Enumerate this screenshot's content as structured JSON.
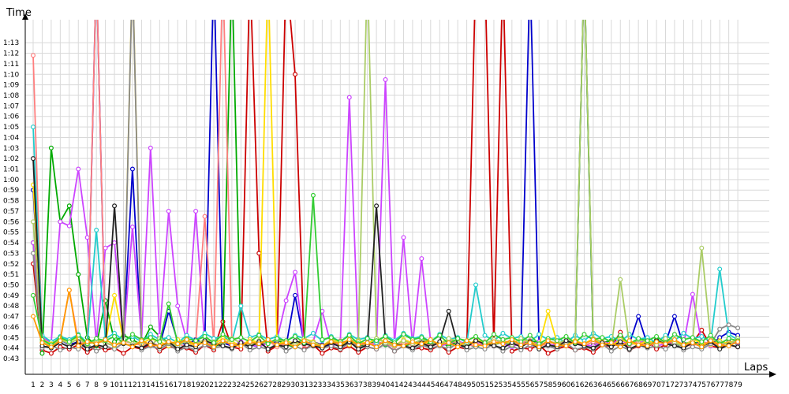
{
  "chart_data": {
    "type": "line",
    "xlabel": "Laps",
    "ylabel": "Time",
    "x": [
      1,
      2,
      3,
      4,
      5,
      6,
      7,
      8,
      9,
      10,
      11,
      12,
      13,
      14,
      15,
      16,
      17,
      18,
      19,
      20,
      21,
      22,
      23,
      24,
      25,
      26,
      27,
      28,
      29,
      30,
      31,
      32,
      33,
      34,
      35,
      36,
      37,
      38,
      39,
      40,
      41,
      42,
      43,
      44,
      45,
      46,
      47,
      48,
      49,
      50,
      51,
      52,
      53,
      54,
      55,
      56,
      57,
      58,
      59,
      60,
      61,
      62,
      63,
      64,
      65,
      66,
      67,
      68,
      69,
      70,
      71,
      72,
      73,
      74,
      75,
      76,
      77,
      78,
      79
    ],
    "x_ticks": [
      "1",
      "2",
      "3",
      "4",
      "5",
      "6",
      "7",
      "8",
      "9",
      "10",
      "11",
      "12",
      "13",
      "14",
      "15",
      "16",
      "17",
      "18",
      "19",
      "20",
      "21",
      "22",
      "23",
      "24",
      "25",
      "26",
      "27",
      "28",
      "29",
      "30",
      "31",
      "32",
      "33",
      "34",
      "35",
      "36",
      "37",
      "38",
      "39",
      "40",
      "41",
      "42",
      "43",
      "44",
      "45",
      "46",
      "47",
      "48",
      "49",
      "50",
      "51",
      "52",
      "53",
      "54",
      "55",
      "56",
      "57",
      "58",
      "59",
      "60",
      "61",
      "62",
      "63",
      "64",
      "65",
      "66",
      "67",
      "68",
      "69",
      "70",
      "71",
      "72",
      "73",
      "74",
      "75",
      "76",
      "77",
      "78",
      "79"
    ],
    "y_ticks": [
      "0:43",
      "0:44",
      "0:45",
      "0:46",
      "0:47",
      "0:48",
      "0:49",
      "0:50",
      "0:51",
      "0:52",
      "0:53",
      "0:54",
      "0:55",
      "0:56",
      "0:57",
      "0:58",
      "0:59",
      "1:00",
      "1:01",
      "1:02",
      "1:03",
      "1:04",
      "1:05",
      "1:06",
      "1:07",
      "1:08",
      "1:09",
      "1:10",
      "1:11",
      "1:12",
      "1:13"
    ],
    "ylim_seconds": [
      42,
      74
    ],
    "grid": true,
    "legend": "none",
    "series": [
      {
        "color": "#0000cc",
        "values": [
          59,
          44.5,
          44.2,
          44.8,
          44.3,
          44.6,
          44.1,
          80,
          44.5,
          44.2,
          44.7,
          61,
          44.3,
          44.5,
          44.2,
          47.5,
          44.6,
          44.3,
          44.8,
          44.4,
          80,
          44.5,
          44.2,
          44.6,
          44.3,
          44.1,
          44.7,
          44.5,
          44.2,
          49,
          44.4,
          44.6,
          44.3,
          44.2,
          44.5,
          44.7,
          44.1,
          44.4,
          44.6,
          44.3,
          44.5,
          44.2,
          44.4,
          44.7,
          44.3,
          44.5,
          44.2,
          44.6,
          44.4,
          44.1,
          44.5,
          44.3,
          44.6,
          44.2,
          44.4,
          80,
          44.5,
          44.3,
          44.2,
          44.6,
          44.4,
          80,
          44.3,
          44.5,
          44.7,
          44.2,
          44.4,
          47,
          44.3,
          44.6,
          44.5,
          47,
          44.2,
          44.4,
          44.6,
          44.3,
          45,
          45.5,
          45.2
        ]
      },
      {
        "color": "#cc0000",
        "values": [
          52,
          43.8,
          43.5,
          44.1,
          43.9,
          44.3,
          43.6,
          44.2,
          43.8,
          44,
          43.5,
          44.1,
          43.9,
          44.4,
          43.7,
          44.2,
          43.9,
          44,
          43.6,
          44.3,
          43.8,
          46.5,
          44.1,
          43.9,
          80,
          53,
          43.7,
          44.2,
          80,
          70,
          43.9,
          44.3,
          43.5,
          44,
          43.8,
          44.2,
          43.6,
          44.1,
          43.9,
          44.4,
          43.7,
          44.2,
          43.9,
          44,
          43.8,
          44.3,
          43.6,
          44.1,
          43.9,
          80,
          80,
          44.2,
          80,
          43.7,
          44,
          43.9,
          44.3,
          43.5,
          43.9,
          44.2,
          43.8,
          44,
          43.6,
          44.3,
          44.1,
          45.5,
          43.8,
          44.2,
          44.6,
          43.9,
          44.3,
          44.6,
          44.1,
          44.5,
          45.7,
          44.2,
          44,
          44.3,
          44.1
        ]
      },
      {
        "color": "#00aa00",
        "values": [
          54,
          43.5,
          63,
          56,
          57.5,
          51,
          45,
          44.2,
          48.5,
          44.6,
          45.2,
          44.8,
          44.3,
          46,
          45.1,
          44.5,
          44.2,
          44.8,
          44.3,
          44.6,
          44.1,
          44.5,
          80,
          44.3,
          44.6,
          44.2,
          44.5,
          44.8,
          44.3,
          44.1,
          44.6,
          44.4,
          44.2,
          44.5,
          44.3,
          44.7,
          44.1,
          44.4,
          44.6,
          44.3,
          44.5,
          44.2,
          44.4,
          44.8,
          44.3,
          44.5,
          44.2,
          44.6,
          44.4,
          44.1,
          44.5,
          44.3,
          44.6,
          44.2,
          44.4,
          44.7,
          44.5,
          44.3,
          44.2,
          44.6,
          44.4,
          80,
          44.3,
          44.5,
          44.7,
          44.2,
          44.4,
          44.6,
          44.3,
          44.8,
          44.5,
          44.2,
          44.4,
          44.6,
          44.3,
          44.5,
          44.2,
          44.6,
          44.4
        ]
      },
      {
        "color": "#cc44ff",
        "values": [
          54,
          45,
          44.5,
          56,
          55.6,
          61,
          54.5,
          44.6,
          53.5,
          54,
          44.5,
          55.5,
          44.8,
          63,
          45.2,
          57,
          48,
          44.7,
          57,
          44.3,
          44.5,
          44.8,
          44.2,
          44.6,
          44.3,
          44.1,
          44.5,
          44.8,
          48.5,
          51.2,
          44.3,
          44.6,
          47.5,
          44.2,
          44.5,
          67.8,
          44.3,
          44.6,
          44.2,
          69.5,
          44.4,
          54.5,
          44.3,
          52.5,
          44.6,
          44.2,
          44.4,
          44.7,
          44.3,
          44.5,
          44.2,
          44.6,
          44.4,
          44.1,
          44.5,
          44.3,
          44.6,
          44.2,
          44.4,
          44.7,
          44.5,
          44.3,
          44.2,
          44.6,
          44.4,
          44.8,
          44.3,
          44.5,
          44.7,
          44.2,
          44.4,
          44.6,
          44.3,
          49.1,
          44.5,
          44.2,
          44.6,
          44.4,
          44.5
        ]
      },
      {
        "color": "#ff7f7f",
        "values": [
          71.8,
          44.5,
          44.2,
          44.8,
          49.5,
          44.6,
          44.3,
          80,
          44.5,
          44.2,
          44.7,
          44.4,
          44.3,
          44.5,
          44.2,
          44.6,
          44.4,
          44.1,
          44.5,
          56.5,
          44.3,
          80,
          44.6,
          44.2,
          44.5,
          44.3,
          44.7,
          44.1,
          44.4,
          44.6,
          44.3,
          44.5,
          44.2,
          44.4,
          44.7,
          44.3,
          44.5,
          44.2,
          44.6,
          44.4,
          44.1,
          44.5,
          44.3,
          44.6,
          44.2,
          44.4,
          44.7,
          44.5,
          44.3,
          44.2,
          44.6,
          44.4,
          44.8,
          44.3,
          44.5,
          44.7,
          44.2,
          44.4,
          44.6,
          44.3,
          44.5,
          44.2,
          44.6,
          44.4,
          44.1,
          44.5,
          44.3,
          44.6,
          44.2,
          44.4,
          44.7,
          44.5,
          44.3,
          44.2,
          44.6,
          44.4,
          44.3,
          44.5,
          44.7
        ]
      },
      {
        "color": "#22cccc",
        "values": [
          65,
          45.2,
          44.6,
          45.1,
          44.8,
          45.3,
          44.5,
          55.2,
          44.9,
          45.4,
          44.7,
          45.1,
          44.6,
          45.3,
          44.8,
          45,
          44.5,
          45.2,
          44.7,
          45.4,
          44.9,
          45.1,
          44.6,
          48,
          45,
          45.3,
          44.8,
          45.1,
          44.6,
          45.2,
          44.9,
          45.4,
          44.7,
          45.1,
          44.6,
          45.3,
          44.8,
          45,
          44.5,
          45.2,
          44.7,
          45.4,
          44.9,
          45.1,
          44.6,
          45.3,
          44.8,
          45,
          44.5,
          50,
          45.2,
          44.7,
          45.4,
          44.9,
          45.1,
          44.6,
          45.3,
          44.8,
          45,
          44.5,
          45.2,
          44.7,
          45.4,
          44.9,
          45.1,
          44.6,
          45.3,
          44.8,
          45,
          44.5,
          45.2,
          44.7,
          45.4,
          44.9,
          45.1,
          44.6,
          51.5,
          45.3,
          44.8
        ]
      },
      {
        "color": "#ffdd00",
        "values": [
          59.5,
          44.8,
          44.4,
          44.9,
          44.6,
          45.1,
          44.3,
          44.8,
          44.5,
          49,
          44.7,
          80,
          44.4,
          44.9,
          44.6,
          44.2,
          44.8,
          44.5,
          44.3,
          44.7,
          44.4,
          44.9,
          44.6,
          44.2,
          44.8,
          44.5,
          80,
          44.3,
          44.7,
          44.4,
          44.9,
          44.6,
          44.2,
          44.8,
          44.5,
          44.3,
          44.7,
          44.4,
          44.9,
          44.6,
          44.2,
          44.8,
          44.5,
          44.3,
          44.7,
          44.4,
          44.9,
          44.6,
          44.2,
          44.8,
          44.5,
          44.3,
          44.7,
          44.4,
          44.9,
          44.6,
          44.2,
          47.5,
          44.5,
          44.3,
          44.7,
          44.4,
          44.9,
          44.6,
          44.2,
          44.8,
          44.5,
          44.3,
          44.7,
          44.4,
          44.9,
          44.6,
          44.2,
          44.8,
          44.5,
          44.3,
          44.7,
          44.4,
          44.9
        ]
      },
      {
        "color": "#888888",
        "values": [
          53,
          44,
          44.3,
          43.8,
          44.1,
          43.9,
          44.4,
          43.7,
          44.2,
          43.9,
          44.5,
          80,
          43.8,
          44.2,
          43.9,
          44.4,
          43.7,
          44.1,
          43.8,
          44.3,
          44,
          44.2,
          43.9,
          44.5,
          43.8,
          44.1,
          43.9,
          44.4,
          43.7,
          44.2,
          43.8,
          44.3,
          44,
          44.2,
          43.9,
          44.5,
          44.2,
          44.1,
          43.9,
          44.4,
          43.7,
          44.2,
          43.8,
          44.3,
          44,
          44.2,
          43.9,
          44.5,
          43.8,
          44.1,
          43.9,
          44.4,
          43.7,
          44.2,
          43.8,
          44.3,
          44,
          44.2,
          43.9,
          44.5,
          43.8,
          44.1,
          43.9,
          44.4,
          43.7,
          44.2,
          43.8,
          44.3,
          44,
          44.2,
          43.9,
          44.5,
          43.8,
          44.1,
          43.9,
          44.4,
          45.8,
          46.2,
          45.9
        ]
      },
      {
        "color": "#aacc66",
        "values": [
          56,
          44.6,
          44.2,
          44.8,
          44.4,
          44.9,
          44.3,
          44.7,
          44.5,
          44.2,
          44.8,
          44.4,
          44.6,
          44.3,
          44.9,
          44.5,
          44.2,
          44.7,
          44.4,
          44.8,
          44.6,
          44.3,
          44.9,
          44.5,
          44.2,
          44.7,
          44.4,
          44.8,
          44.6,
          44.3,
          44.9,
          44.5,
          44.2,
          44.7,
          44.4,
          44.8,
          44.6,
          80,
          44.9,
          44.5,
          44.2,
          44.7,
          44.4,
          44.8,
          44.6,
          44.3,
          44.9,
          44.5,
          44.2,
          44.7,
          44.4,
          44.8,
          44.6,
          44.3,
          44.9,
          44.5,
          44.2,
          44.7,
          44.4,
          44.8,
          44.6,
          80,
          44.9,
          44.5,
          44.2,
          50.5,
          44.4,
          44.8,
          44.6,
          44.3,
          44.9,
          44.5,
          44.2,
          44.7,
          53.5,
          44.8,
          44.6,
          44.3,
          44.9
        ]
      },
      {
        "color": "#222222",
        "values": [
          62,
          44.2,
          44,
          44.5,
          44.1,
          44.6,
          43.9,
          44.3,
          44.1,
          57.5,
          44.4,
          44.2,
          44,
          44.5,
          44.1,
          44.6,
          43.9,
          44.3,
          44.1,
          44.7,
          44.4,
          44.2,
          44,
          44.5,
          44.1,
          44.6,
          43.9,
          44.3,
          44.1,
          44.7,
          44.4,
          44.2,
          44,
          44.5,
          44.1,
          44.6,
          43.9,
          44.3,
          57.5,
          44.7,
          44.4,
          44.2,
          44,
          44.5,
          44.1,
          44.6,
          47.5,
          44.3,
          44.1,
          44.7,
          44.4,
          44.2,
          44,
          44.5,
          44.1,
          44.6,
          43.9,
          44.3,
          44.1,
          44.7,
          44.4,
          44.2,
          44,
          44.5,
          44.1,
          44.6,
          43.9,
          44.3,
          44.1,
          44.7,
          44.4,
          44.2,
          44,
          44.5,
          44.1,
          44.6,
          43.9,
          44.3,
          44.1
        ]
      },
      {
        "color": "#33cc33",
        "values": [
          49,
          44.8,
          44.3,
          45,
          44.6,
          45.2,
          44.4,
          44.9,
          44.7,
          45.1,
          44.5,
          45.3,
          44.8,
          45,
          44.6,
          48.2,
          44.4,
          44.9,
          44.7,
          45.1,
          44.5,
          45.3,
          44.8,
          45,
          44.6,
          45.2,
          44.4,
          44.9,
          44.7,
          45.1,
          44.5,
          58.5,
          44.8,
          45,
          44.6,
          45.2,
          44.4,
          44.9,
          44.7,
          45.1,
          44.5,
          45.3,
          44.8,
          45,
          44.6,
          45.2,
          44.4,
          44.9,
          44.7,
          45.1,
          44.5,
          45.3,
          44.8,
          45,
          44.6,
          45.2,
          44.4,
          44.9,
          44.7,
          45.1,
          44.5,
          45.3,
          44.8,
          45,
          44.6,
          45.2,
          44.4,
          44.9,
          44.7,
          45.1,
          44.5,
          45.3,
          44.8,
          45,
          44.6,
          45.2,
          44.4,
          44.9,
          44.7
        ]
      },
      {
        "color": "#ff9900",
        "values": [
          47,
          44.5,
          44.1,
          44.7,
          49.5,
          44.2,
          44.6,
          44.4,
          44.8,
          44.3,
          44.5,
          44.1,
          44.7,
          44.3,
          44.2,
          44.6,
          44.4,
          44.8,
          44.3,
          44.5,
          44.1,
          44.7,
          44.3,
          44.2,
          44.6,
          44.4,
          44.8,
          44.3,
          44.5,
          44.1,
          44.7,
          44.3,
          44.2,
          44.6,
          44.4,
          44.8,
          44.3,
          44.5,
          44.1,
          44.7,
          44.3,
          44.2,
          44.6,
          44.4,
          44.8,
          44.3,
          44.5,
          44.1,
          44.7,
          44.3,
          44.2,
          44.6,
          44.4,
          44.8,
          44.3,
          44.5,
          44.1,
          44.7,
          44.3,
          44.2,
          44.6,
          44.4,
          44.8,
          44.3,
          44.5,
          44.1,
          44.7,
          44.3,
          44.2,
          44.6,
          44.4,
          44.8,
          44.3,
          44.5,
          44.1,
          44.7,
          44.3,
          44.2,
          44.6
        ]
      }
    ]
  }
}
